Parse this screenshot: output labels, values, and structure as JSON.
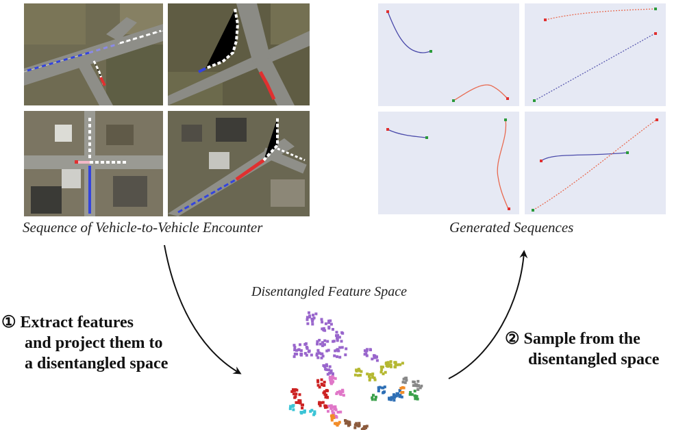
{
  "left_panel": {
    "caption": "Sequence of Vehicle-to-Vehicle Encounter"
  },
  "right_panel": {
    "caption": "Generated Sequences"
  },
  "feature_space": {
    "caption": "Disentangled Feature Space"
  },
  "steps": {
    "extract_lines": [
      "① Extract features",
      "and project them to",
      "a disentangled space"
    ],
    "sample_lines": [
      "② Sample from the",
      "disentangled space"
    ]
  },
  "colors": {
    "vehicle_1": "#3344dd",
    "vehicle_2": "#e03030",
    "generated_bg": "#e6e9f4",
    "cluster_purple": "#9966cc",
    "cluster_red": "#cc2222",
    "cluster_pink": "#e077c8",
    "cluster_olive": "#b5b832",
    "cluster_blue": "#2e6fb5",
    "cluster_orange": "#f28c28",
    "cluster_cyan": "#3cc4d6",
    "cluster_brown": "#8b5a3c",
    "cluster_gray": "#888888",
    "cluster_green": "#3aa04a"
  }
}
